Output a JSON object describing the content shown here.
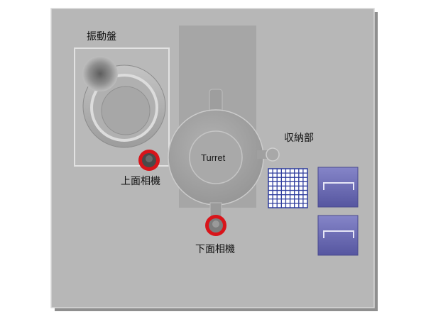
{
  "labels": {
    "vibration_plate": "振動盤",
    "turret": "Turret",
    "storage": "収納部",
    "top_camera": "上面相機",
    "bottom_camera": "下面相機"
  },
  "colors": {
    "panel": "#b8b8b8",
    "panel_shadow": "#8a8a8a",
    "column": "#a7a7a7",
    "turret": "#a3a3a3",
    "camera_ring": "#d8141a",
    "tray_grid": "#2f3d9e",
    "trays": "#6a6ab3"
  },
  "icons": {
    "vibration_plate": "vibratory-bowl-icon",
    "camera": "camera-lens-icon",
    "tray": "storage-tray-icon"
  }
}
